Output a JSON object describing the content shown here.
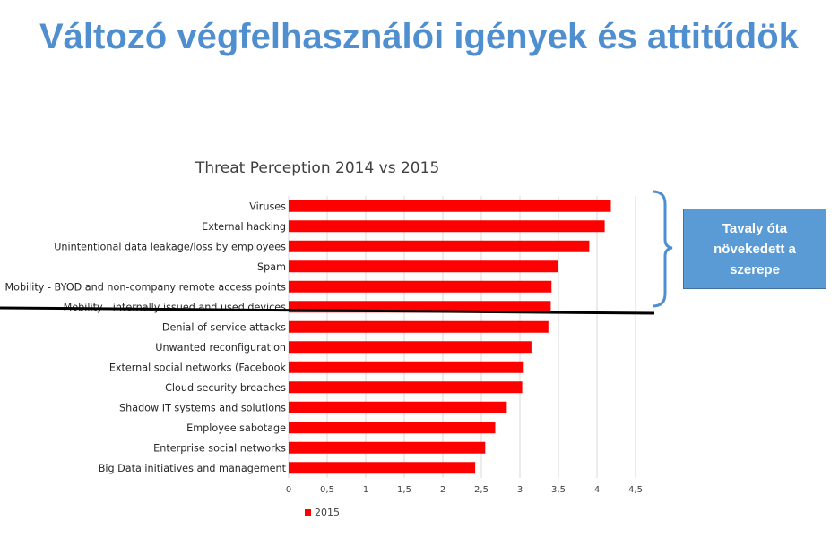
{
  "slide": {
    "title": "Változó végfelhasználói igények és attitűdök"
  },
  "callout": {
    "text": "Tavaly óta növekedett a szerepe"
  },
  "colors": {
    "title": "#4f8fd0",
    "bar": "#ff0000",
    "callout_fill": "#5b9bd5",
    "bracket": "#4f8fd0",
    "divider": "#000000"
  },
  "chart_data": {
    "type": "bar",
    "orientation": "horizontal",
    "title": "Threat Perception 2014 vs 2015",
    "categories": [
      "Viruses",
      "External hacking",
      "Unintentional data leakage/loss by employees",
      "Spam",
      "Mobility - BYOD and non-company remote access points",
      "Mobility - internally issued and used devices",
      "Denial of service attacks",
      "Unwanted reconfiguration",
      "External social networks (Facebook",
      "Cloud security breaches",
      "Shadow IT systems and solutions",
      "Employee sabotage",
      "Enterprise social networks",
      "Big Data initiatives and management"
    ],
    "series": [
      {
        "name": "2015",
        "values": [
          4.18,
          4.1,
          3.9,
          3.5,
          3.41,
          3.4,
          3.37,
          3.15,
          3.05,
          3.03,
          2.83,
          2.68,
          2.55,
          2.42
        ]
      }
    ],
    "xticks": [
      "0",
      "0,5",
      "1",
      "1,5",
      "2",
      "2,5",
      "3",
      "3,5",
      "4",
      "4,5"
    ],
    "xlim": [
      0,
      4.5
    ],
    "grid": true,
    "legend_position": "bottom-left"
  }
}
